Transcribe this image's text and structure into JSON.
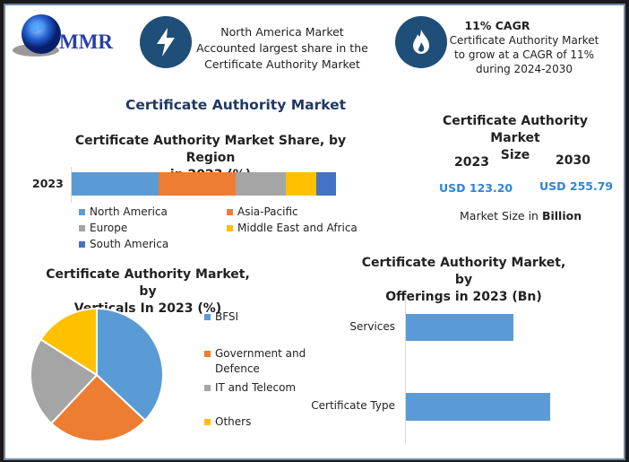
{
  "header": {
    "logo_text": "MMR",
    "info1": {
      "icon": "lightning-icon",
      "lines": [
        "North America Market",
        "Accounted largest share in the",
        "Certificate Authority Market"
      ]
    },
    "info2": {
      "icon": "flame-icon",
      "title": "11% CAGR",
      "lines": [
        "Certificate Authority Market",
        "to grow at a CAGR of 11%",
        "during 2024-2030"
      ]
    }
  },
  "main_title": "Certificate Authority Market",
  "colors": {
    "title_blue": "#1f3864",
    "icon_circle": "#1f4e79",
    "usd_blue": "#2e86d8"
  },
  "market_size": {
    "title_lines": [
      "Certificate Authority Market",
      "Size"
    ],
    "years": [
      "2023",
      "2030"
    ],
    "values": [
      "USD 123.20",
      "USD 255.79"
    ],
    "note_prefix": "Market Size in ",
    "note_bold": "Billion"
  },
  "chart_data": [
    {
      "type": "bar",
      "orientation": "horizontal-stacked",
      "title_lines": [
        "Certificate Authority Market Share, by Region",
        "in 2023 (%)"
      ],
      "categories": [
        "2023"
      ],
      "series": [
        {
          "name": "North America",
          "values": [
            33
          ],
          "color": "#5b9bd5"
        },
        {
          "name": "Asia-Pacific",
          "values": [
            29
          ],
          "color": "#ed7d31"
        },
        {
          "name": "Europe",
          "values": [
            19
          ],
          "color": "#a5a5a5"
        },
        {
          "name": "Middle East and Africa",
          "values": [
            11.5
          ],
          "color": "#ffc000"
        },
        {
          "name": "South America",
          "values": [
            7.5
          ],
          "color": "#4472c4"
        }
      ],
      "legend": "bottom"
    },
    {
      "type": "pie",
      "title_lines": [
        "Certificate Authority Market, by",
        "Verticals In 2023 (%)"
      ],
      "slices": [
        {
          "name": "BFSI",
          "value": 37,
          "color": "#5b9bd5"
        },
        {
          "name": "Government and Defence",
          "value": 25,
          "color": "#ed7d31"
        },
        {
          "name": "IT and Telecom",
          "value": 22,
          "color": "#a5a5a5"
        },
        {
          "name": "Others",
          "value": 16,
          "color": "#ffc000"
        }
      ],
      "legend_lines": [
        [
          "BFSI"
        ],
        [
          "Government and",
          "Defence"
        ],
        [
          "IT and Telecom"
        ],
        [
          "Others"
        ]
      ],
      "legend": "right"
    },
    {
      "type": "bar",
      "orientation": "horizontal",
      "title_lines": [
        "Certificate Authority Market, by",
        "Offerings in 2023 (Bn)"
      ],
      "categories": [
        "Services",
        "Certificate Type"
      ],
      "values": [
        52.5,
        70.7
      ],
      "color": "#5b9bd5"
    }
  ]
}
